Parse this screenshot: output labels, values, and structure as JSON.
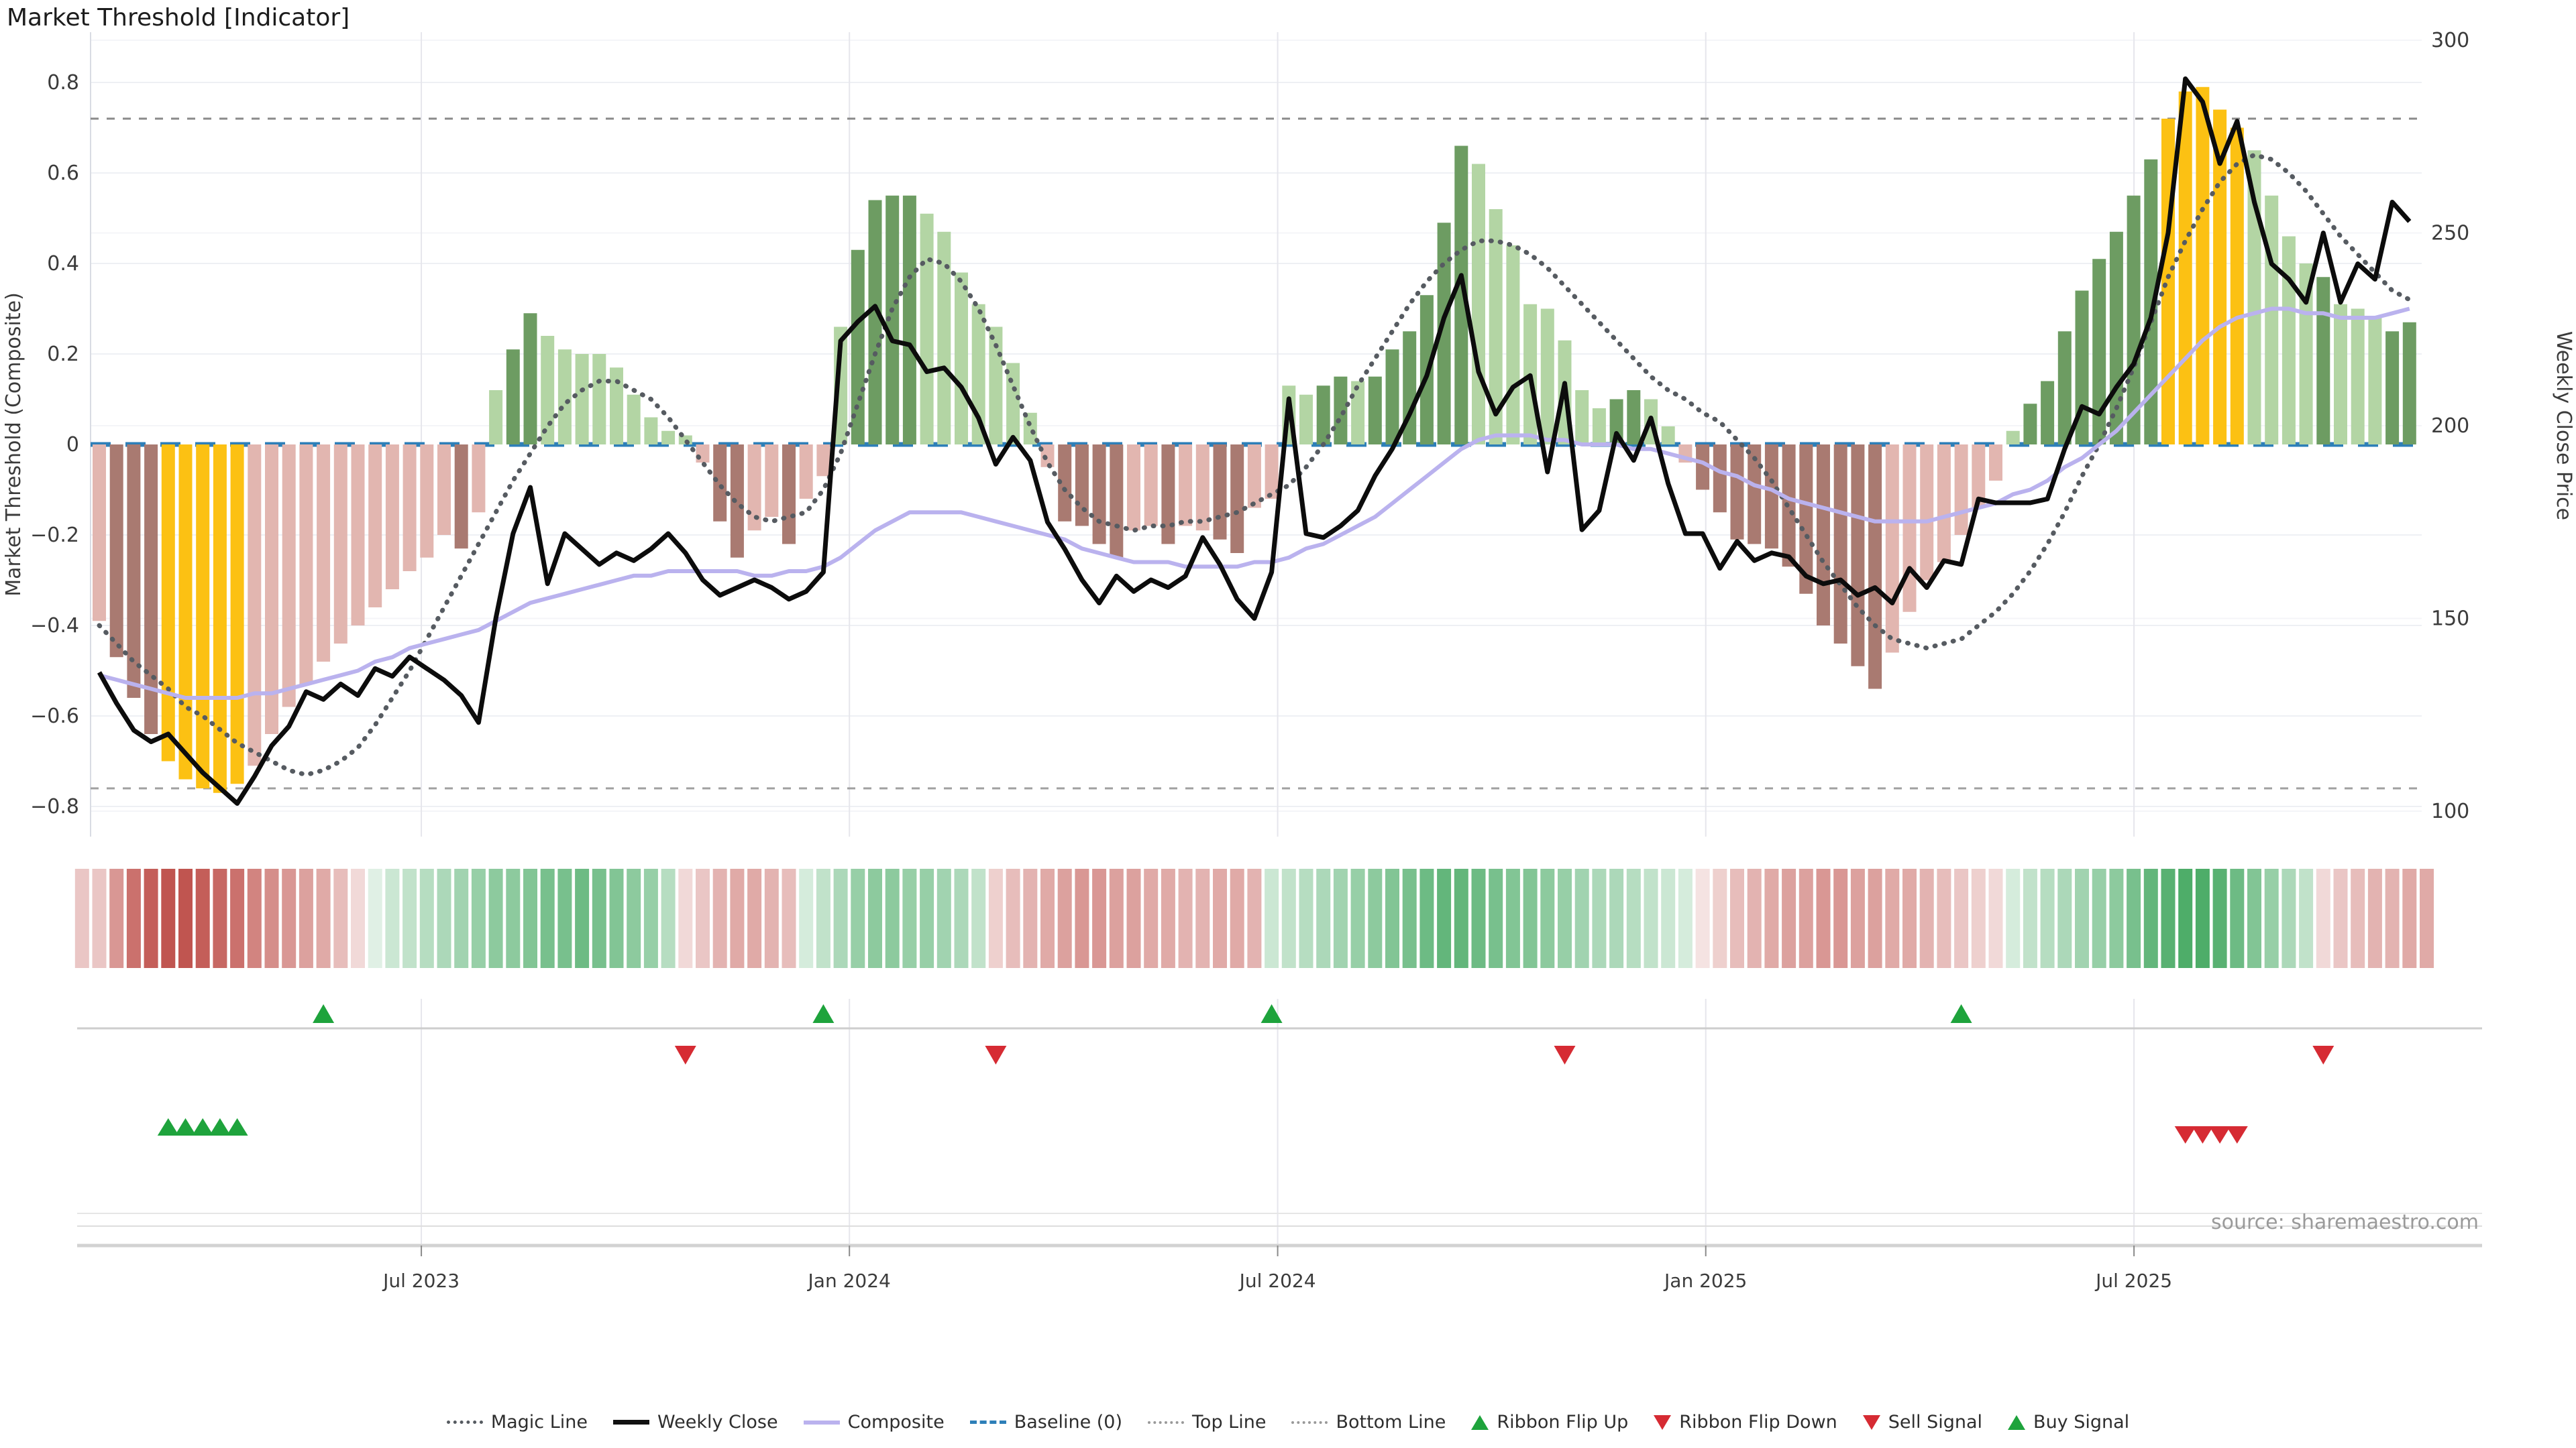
{
  "title": "Market Threshold [Indicator]",
  "source_note": "source: sharemaestro.com",
  "colors": {
    "bar_light_pink": "#e2b6b0",
    "bar_dark_red": "#a97a71",
    "bar_gold": "#fcc113",
    "bar_light_green": "#b3d5a4",
    "bar_dark_green": "#6d9c62",
    "weekly_close_line": "#0c0c0c",
    "composite_line": "#bab2ee",
    "magic_line": "#565b61",
    "baseline": "#2d7fb8",
    "top_bottom_line": "#8a8a8a",
    "signal_green": "#1ea33c",
    "signal_red": "#d62b33",
    "ribbon_green_full": "#2f9e4f",
    "ribbon_red_full": "#b9423c",
    "grid_light": "#eef0f4",
    "grid_price": "#f4f5f8",
    "grid_vertical": "#e6e6ec",
    "axis_text": "#3b3b3b"
  },
  "chart_data": {
    "type": "bar",
    "subtype": "weekly indicator bars + price line combo with ribbon and signal rows",
    "title": "Market Threshold [Indicator]",
    "left_axis": {
      "label": "Market Threshold (Composite)",
      "ticks": [
        0.8,
        0.6,
        0.4,
        0.2,
        0,
        -0.2,
        -0.4,
        -0.6,
        -0.8
      ],
      "range": [
        -0.9,
        0.9
      ]
    },
    "right_axis": {
      "label": "Weekly Close Price",
      "ticks": [
        300,
        250,
        200,
        150,
        100
      ],
      "range": [
        90,
        310
      ]
    },
    "x_ticks": [
      {
        "label": "Jul 2023",
        "week": 18.68
      },
      {
        "label": "Jan 2024",
        "week": 43.51
      },
      {
        "label": "Jul 2024",
        "week": 68.35
      },
      {
        "label": "Jan 2025",
        "week": 93.18
      },
      {
        "label": "Jul 2025",
        "week": 118.02
      }
    ],
    "top_line": 0.72,
    "bottom_line": -0.76,
    "baseline": 0,
    "grid": true,
    "legend_position": "bottom-center",
    "weeks": 135,
    "bars": {
      "values": [
        -0.39,
        -0.47,
        -0.56,
        -0.64,
        -0.7,
        -0.74,
        -0.76,
        -0.77,
        -0.75,
        -0.71,
        -0.64,
        -0.58,
        -0.53,
        -0.48,
        -0.44,
        -0.4,
        -0.36,
        -0.32,
        -0.28,
        -0.25,
        -0.2,
        -0.23,
        -0.15,
        0.12,
        0.21,
        0.29,
        0.24,
        0.21,
        0.2,
        0.2,
        0.17,
        0.11,
        0.06,
        0.03,
        0.02,
        -0.04,
        -0.17,
        -0.25,
        -0.19,
        -0.16,
        -0.22,
        -0.12,
        -0.07,
        0.26,
        0.43,
        0.54,
        0.55,
        0.55,
        0.51,
        0.47,
        0.38,
        0.31,
        0.26,
        0.18,
        0.07,
        -0.05,
        -0.17,
        -0.18,
        -0.22,
        -0.25,
        -0.19,
        -0.18,
        -0.22,
        -0.18,
        -0.19,
        -0.21,
        -0.24,
        -0.14,
        -0.12,
        0.13,
        0.11,
        0.13,
        0.15,
        0.14,
        0.15,
        0.21,
        0.25,
        0.33,
        0.49,
        0.66,
        0.62,
        0.52,
        0.44,
        0.31,
        0.3,
        0.23,
        0.12,
        0.08,
        0.1,
        0.12,
        0.1,
        0.04,
        -0.04,
        -0.1,
        -0.15,
        -0.21,
        -0.22,
        -0.23,
        -0.27,
        -0.33,
        -0.4,
        -0.44,
        -0.49,
        -0.54,
        -0.46,
        -0.37,
        -0.3,
        -0.26,
        -0.2,
        -0.14,
        -0.08,
        0.03,
        0.09,
        0.14,
        0.25,
        0.34,
        0.41,
        0.47,
        0.55,
        0.63,
        0.72,
        0.78,
        0.79,
        0.74,
        0.7,
        0.65,
        0.55,
        0.46,
        0.4,
        0.37,
        0.31,
        0.3,
        0.28,
        0.25,
        0.27
      ],
      "color_codes": [
        "LP",
        "DR",
        "DR",
        "DR",
        "G",
        "G",
        "G",
        "G",
        "G",
        "LP",
        "LP",
        "LP",
        "LP",
        "LP",
        "LP",
        "LP",
        "LP",
        "LP",
        "LP",
        "LP",
        "LP",
        "DR",
        "LP",
        "LG",
        "DG",
        "DG",
        "LG",
        "LG",
        "LG",
        "LG",
        "LG",
        "LG",
        "LG",
        "LG",
        "LG",
        "LP",
        "DR",
        "DR",
        "LP",
        "LP",
        "DR",
        "LP",
        "LP",
        "LG",
        "DG",
        "DG",
        "DG",
        "DG",
        "LG",
        "LG",
        "LG",
        "LG",
        "LG",
        "LG",
        "LG",
        "LP",
        "DR",
        "DR",
        "DR",
        "DR",
        "LP",
        "LP",
        "DR",
        "LP",
        "LP",
        "DR",
        "DR",
        "LP",
        "LP",
        "LG",
        "LG",
        "DG",
        "DG",
        "LG",
        "DG",
        "DG",
        "DG",
        "DG",
        "DG",
        "DG",
        "LG",
        "LG",
        "LG",
        "LG",
        "LG",
        "LG",
        "LG",
        "LG",
        "DG",
        "DG",
        "LG",
        "LG",
        "LP",
        "DR",
        "DR",
        "DR",
        "DR",
        "DR",
        "DR",
        "DR",
        "DR",
        "DR",
        "DR",
        "DR",
        "LP",
        "LP",
        "LP",
        "LP",
        "LP",
        "LP",
        "LP",
        "LG",
        "DG",
        "DG",
        "DG",
        "DG",
        "DG",
        "DG",
        "DG",
        "DG",
        "G",
        "G",
        "G",
        "G",
        "G",
        "LG",
        "LG",
        "LG",
        "LG",
        "DG",
        "LG",
        "LG",
        "LG",
        "DG",
        "DG"
      ]
    },
    "weekly_close": [
      136,
      128,
      121,
      118,
      120,
      115,
      110,
      106,
      102,
      109,
      117,
      122,
      131,
      129,
      133,
      130,
      137,
      135,
      140,
      137,
      134,
      130,
      123,
      150,
      172,
      184,
      159,
      172,
      168,
      164,
      167,
      165,
      168,
      172,
      167,
      160,
      156,
      158,
      160,
      158,
      155,
      157,
      162,
      222,
      227,
      231,
      222,
      221,
      214,
      215,
      210,
      202,
      190,
      197,
      191,
      175,
      168,
      160,
      154,
      161,
      157,
      160,
      158,
      161,
      171,
      164,
      155,
      150,
      162,
      207,
      172,
      171,
      174,
      178,
      187,
      194,
      203,
      213,
      228,
      239,
      214,
      203,
      210,
      213,
      188,
      211,
      173,
      178,
      198,
      191,
      202,
      185,
      172,
      172,
      163,
      170,
      165,
      167,
      166,
      161,
      159,
      160,
      156,
      158,
      154,
      163,
      158,
      165,
      164,
      181,
      180,
      180,
      180,
      181,
      194,
      205,
      203,
      210,
      216,
      228,
      250,
      290,
      284,
      268,
      279,
      258,
      242,
      238,
      232,
      250,
      232,
      242,
      238,
      258,
      253
    ],
    "composite": [
      -0.51,
      -0.52,
      -0.53,
      -0.54,
      -0.55,
      -0.56,
      -0.56,
      -0.56,
      -0.56,
      -0.55,
      -0.55,
      -0.54,
      -0.53,
      -0.52,
      -0.51,
      -0.5,
      -0.48,
      -0.47,
      -0.45,
      -0.44,
      -0.43,
      -0.42,
      -0.41,
      -0.39,
      -0.37,
      -0.35,
      -0.34,
      -0.33,
      -0.32,
      -0.31,
      -0.3,
      -0.29,
      -0.29,
      -0.28,
      -0.28,
      -0.28,
      -0.28,
      -0.28,
      -0.29,
      -0.29,
      -0.28,
      -0.28,
      -0.27,
      -0.25,
      -0.22,
      -0.19,
      -0.17,
      -0.15,
      -0.15,
      -0.15,
      -0.15,
      -0.16,
      -0.17,
      -0.18,
      -0.19,
      -0.2,
      -0.21,
      -0.23,
      -0.24,
      -0.25,
      -0.26,
      -0.26,
      -0.26,
      -0.27,
      -0.27,
      -0.27,
      -0.27,
      -0.26,
      -0.26,
      -0.25,
      -0.23,
      -0.22,
      -0.2,
      -0.18,
      -0.16,
      -0.13,
      -0.1,
      -0.07,
      -0.04,
      -0.01,
      0.01,
      0.02,
      0.02,
      0.02,
      0.01,
      0.01,
      0.0,
      0.0,
      0.0,
      -0.01,
      -0.01,
      -0.02,
      -0.03,
      -0.04,
      -0.06,
      -0.07,
      -0.09,
      -0.1,
      -0.12,
      -0.13,
      -0.14,
      -0.15,
      -0.16,
      -0.17,
      -0.17,
      -0.17,
      -0.17,
      -0.16,
      -0.15,
      -0.14,
      -0.13,
      -0.11,
      -0.1,
      -0.08,
      -0.05,
      -0.03,
      0.0,
      0.03,
      0.07,
      0.11,
      0.15,
      0.19,
      0.23,
      0.26,
      0.28,
      0.29,
      0.3,
      0.3,
      0.29,
      0.29,
      0.28,
      0.28,
      0.28,
      0.29,
      0.3
    ],
    "magic_line": [
      -0.4,
      -0.44,
      -0.48,
      -0.51,
      -0.54,
      -0.58,
      -0.6,
      -0.63,
      -0.66,
      -0.68,
      -0.7,
      -0.72,
      -0.73,
      -0.72,
      -0.7,
      -0.67,
      -0.62,
      -0.56,
      -0.5,
      -0.43,
      -0.36,
      -0.29,
      -0.22,
      -0.15,
      -0.08,
      -0.02,
      0.04,
      0.09,
      0.12,
      0.14,
      0.14,
      0.12,
      0.1,
      0.06,
      0.01,
      -0.04,
      -0.09,
      -0.13,
      -0.16,
      -0.17,
      -0.16,
      -0.15,
      -0.1,
      -0.02,
      0.09,
      0.2,
      0.3,
      0.37,
      0.41,
      0.4,
      0.36,
      0.3,
      0.22,
      0.13,
      0.04,
      -0.04,
      -0.1,
      -0.14,
      -0.17,
      -0.18,
      -0.19,
      -0.18,
      -0.18,
      -0.17,
      -0.17,
      -0.16,
      -0.15,
      -0.13,
      -0.11,
      -0.09,
      -0.05,
      0.0,
      0.06,
      0.13,
      0.19,
      0.25,
      0.31,
      0.36,
      0.4,
      0.43,
      0.45,
      0.45,
      0.44,
      0.42,
      0.39,
      0.35,
      0.31,
      0.27,
      0.23,
      0.19,
      0.15,
      0.12,
      0.1,
      0.07,
      0.05,
      0.01,
      -0.03,
      -0.08,
      -0.14,
      -0.2,
      -0.26,
      -0.31,
      -0.36,
      -0.4,
      -0.43,
      -0.44,
      -0.45,
      -0.44,
      -0.43,
      -0.4,
      -0.37,
      -0.33,
      -0.28,
      -0.22,
      -0.15,
      -0.07,
      0.0,
      0.08,
      0.17,
      0.27,
      0.37,
      0.45,
      0.52,
      0.58,
      0.62,
      0.64,
      0.63,
      0.6,
      0.56,
      0.51,
      0.46,
      0.42,
      0.38,
      0.34,
      0.32
    ],
    "ribbon": [
      -0.3,
      -0.55,
      -0.75,
      -0.85,
      -0.9,
      -0.9,
      -0.85,
      -0.8,
      -0.75,
      -0.65,
      -0.6,
      -0.55,
      -0.5,
      -0.45,
      -0.35,
      -0.2,
      0.15,
      0.25,
      0.3,
      0.35,
      0.4,
      0.45,
      0.5,
      0.55,
      0.55,
      0.6,
      0.65,
      0.65,
      0.7,
      0.65,
      0.6,
      0.55,
      0.5,
      0.35,
      -0.2,
      -0.3,
      -0.4,
      -0.45,
      -0.45,
      -0.4,
      -0.35,
      0.2,
      0.3,
      0.4,
      0.5,
      0.55,
      0.55,
      0.5,
      0.5,
      0.45,
      0.4,
      0.3,
      -0.25,
      -0.35,
      -0.4,
      -0.45,
      -0.5,
      -0.55,
      -0.55,
      -0.5,
      -0.5,
      -0.45,
      -0.45,
      -0.4,
      -0.4,
      -0.45,
      -0.45,
      -0.4,
      0.25,
      0.3,
      0.35,
      0.4,
      0.45,
      0.5,
      0.55,
      0.6,
      0.65,
      0.7,
      0.75,
      0.75,
      0.7,
      0.65,
      0.6,
      0.6,
      0.55,
      0.5,
      0.45,
      0.4,
      0.4,
      0.35,
      0.3,
      0.25,
      0.2,
      -0.15,
      -0.25,
      -0.35,
      -0.4,
      -0.45,
      -0.5,
      -0.5,
      -0.55,
      -0.55,
      -0.5,
      -0.5,
      -0.45,
      -0.45,
      -0.4,
      -0.35,
      -0.3,
      -0.25,
      -0.2,
      0.2,
      0.3,
      0.35,
      0.4,
      0.45,
      0.5,
      0.55,
      0.65,
      0.75,
      0.8,
      0.85,
      0.85,
      0.8,
      0.7,
      0.6,
      0.5,
      0.4,
      0.3,
      -0.2,
      -0.3,
      -0.35,
      -0.4,
      -0.4,
      -0.45
    ],
    "signals": {
      "ribbon_flip_up_weeks": [
        13,
        42,
        68,
        108
      ],
      "ribbon_flip_down_weeks": [
        34,
        52,
        85,
        129
      ],
      "buy_signal_weeks": [
        4,
        5,
        6,
        7,
        8
      ],
      "sell_signal_weeks": [
        121,
        122,
        123,
        124
      ]
    },
    "legend": [
      {
        "label": "Magic Line",
        "glyph": "dotted-dark-line"
      },
      {
        "label": "Weekly Close",
        "glyph": "solid-black-line"
      },
      {
        "label": "Composite",
        "glyph": "solid-lavender-line"
      },
      {
        "label": "Baseline (0)",
        "glyph": "dashed-blue-line"
      },
      {
        "label": "Top Line",
        "glyph": "dotted-gray-line"
      },
      {
        "label": "Bottom Line",
        "glyph": "dotted-gray-line"
      },
      {
        "label": "Ribbon Flip Up",
        "glyph": "green-up-triangle"
      },
      {
        "label": "Ribbon Flip Down",
        "glyph": "red-down-triangle"
      },
      {
        "label": "Sell Signal",
        "glyph": "red-down-triangle"
      },
      {
        "label": "Buy Signal",
        "glyph": "green-up-triangle"
      }
    ]
  }
}
